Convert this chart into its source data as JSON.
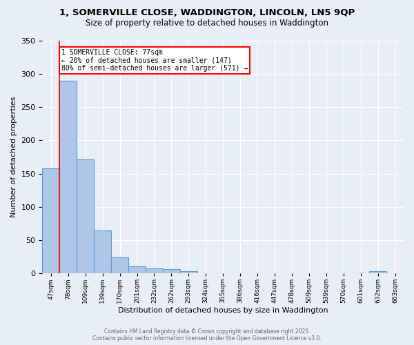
{
  "title_line1": "1, SOMERVILLE CLOSE, WADDINGTON, LINCOLN, LN5 9QP",
  "title_line2": "Size of property relative to detached houses in Waddington",
  "xlabel": "Distribution of detached houses by size in Waddington",
  "ylabel": "Number of detached properties",
  "bin_labels": [
    "47sqm",
    "78sqm",
    "109sqm",
    "139sqm",
    "170sqm",
    "201sqm",
    "232sqm",
    "262sqm",
    "293sqm",
    "324sqm",
    "355sqm",
    "386sqm",
    "416sqm",
    "447sqm",
    "478sqm",
    "509sqm",
    "539sqm",
    "570sqm",
    "601sqm",
    "632sqm",
    "663sqm"
  ],
  "bar_values": [
    158,
    290,
    171,
    65,
    24,
    10,
    7,
    6,
    3,
    0,
    0,
    0,
    0,
    0,
    0,
    0,
    0,
    0,
    0,
    3,
    0
  ],
  "bar_color": "#aec6e8",
  "bar_edge_color": "#5b9bd5",
  "red_line_x": 0.5,
  "annotation_text": "1 SOMERVILLE CLOSE: 77sqm\n← 20% of detached houses are smaller (147)\n80% of semi-detached houses are larger (571) →",
  "annotation_box_color": "white",
  "annotation_box_edge": "red",
  "background_color": "#e8eef5",
  "plot_bg_color": "#e8eef5",
  "grid_color": "white",
  "footer_line1": "Contains HM Land Registry data © Crown copyright and database right 2025.",
  "footer_line2": "Contains public sector information licensed under the Open Government Licence v3.0.",
  "ylim": [
    0,
    350
  ],
  "yticks": [
    0,
    50,
    100,
    150,
    200,
    250,
    300,
    350
  ]
}
